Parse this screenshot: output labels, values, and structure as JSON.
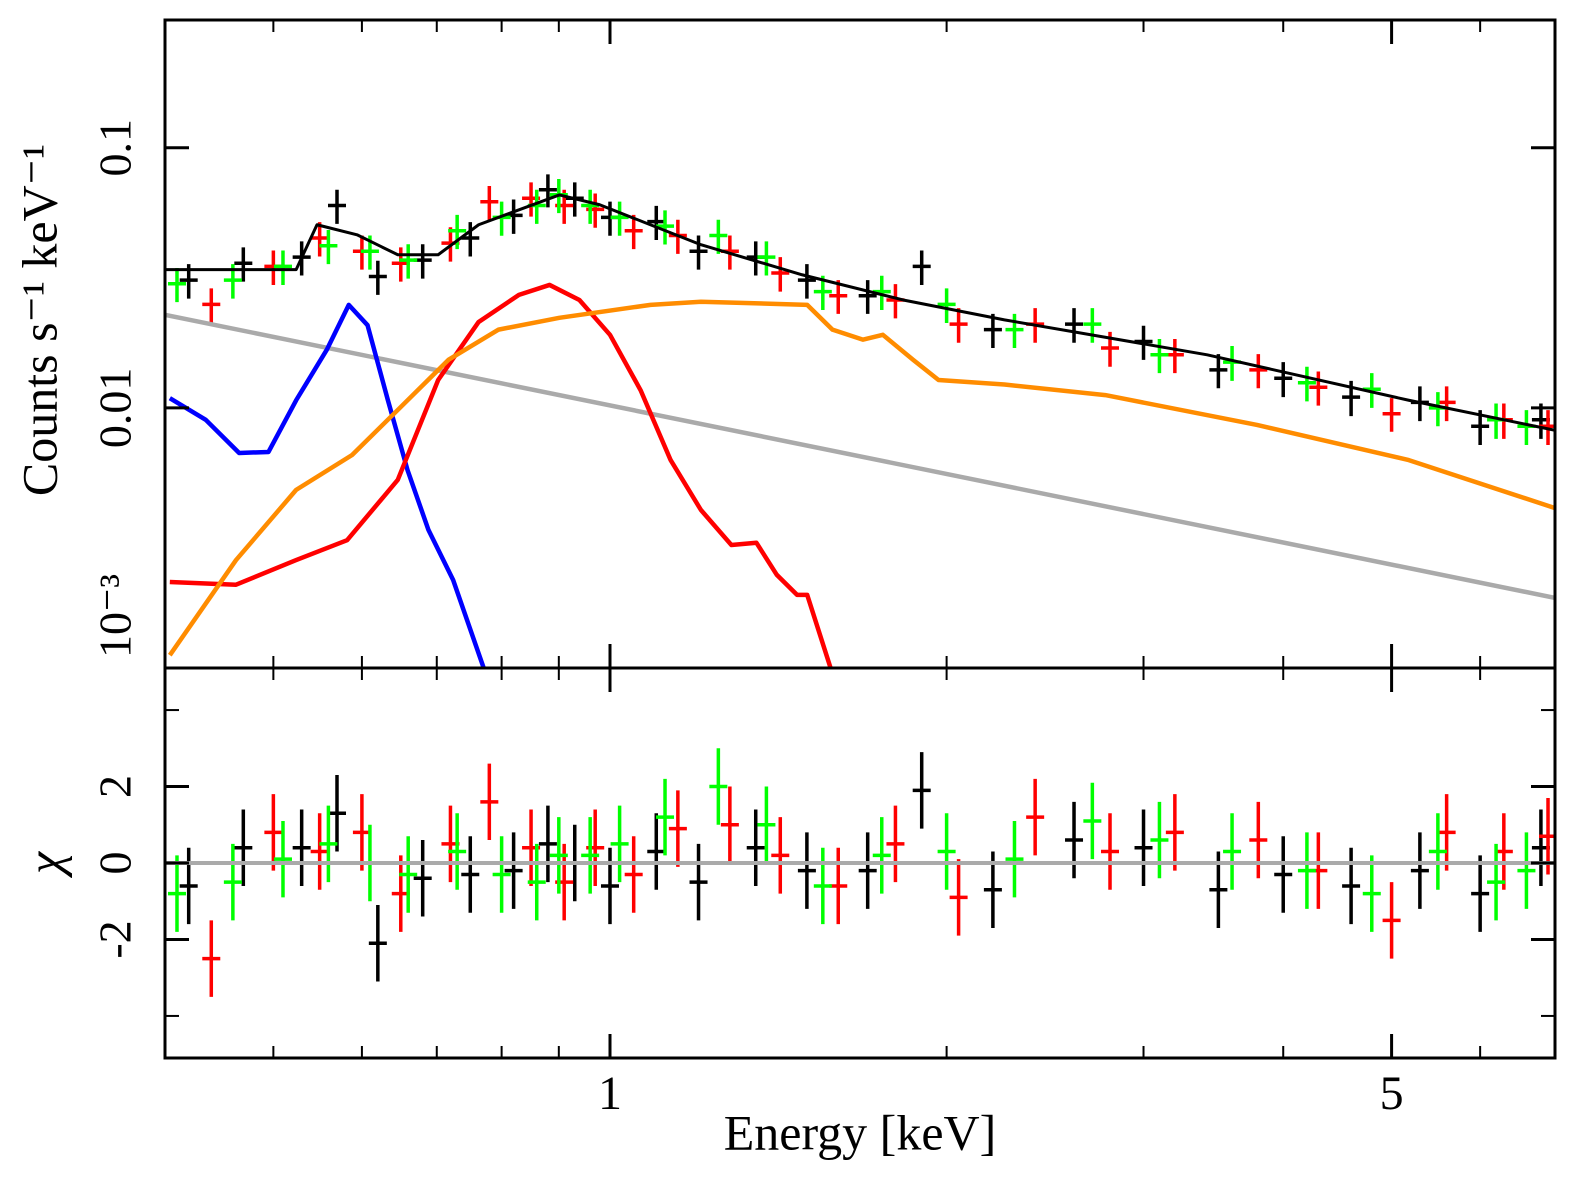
{
  "chart_data": {
    "type": "spectrum",
    "ylabel": "Counts s⁻¹ keV⁻¹",
    "xlabel": "Energy [keV]",
    "xscale": "log",
    "yscale": "log",
    "xlim": [
      0.4,
      7
    ],
    "xticks": [
      1,
      5
    ],
    "xticks_minor": [
      0.5,
      0.6,
      0.7,
      0.8,
      0.9,
      2,
      3,
      4,
      6,
      7
    ],
    "ylim": [
      0.001,
      0.31
    ],
    "yticks": [
      0.1,
      0.01,
      {
        "value": 0.001,
        "label": "10⁻³"
      }
    ],
    "chi_ylabel": "χ",
    "chi_ylim": [
      -5.1,
      5.1
    ],
    "chi_yticks": [
      -2,
      0,
      2
    ],
    "chi_yticks_minor": [
      -4,
      4
    ],
    "models": [
      {
        "color": "#aaaaaa",
        "x": [
          0.4,
          7
        ],
        "values": [
          0.0228,
          0.00186
        ]
      },
      {
        "color": "#0000ff",
        "x": [
          0.404,
          0.435,
          0.466,
          0.495,
          0.524,
          0.558,
          0.584,
          0.607,
          0.633,
          0.659,
          0.688,
          0.724,
          0.771
        ],
        "values": [
          0.0109,
          0.009,
          0.00671,
          0.00677,
          0.0107,
          0.0167,
          0.0249,
          0.0208,
          0.0107,
          0.00578,
          0.0034,
          0.00218,
          0.001
        ]
      },
      {
        "color": "#ff0000",
        "x": [
          0.404,
          0.463,
          0.524,
          0.582,
          0.646,
          0.702,
          0.763,
          0.829,
          0.883,
          0.939,
          1,
          1.065,
          1.133,
          1.206,
          1.284,
          1.352,
          1.41,
          1.47,
          1.501,
          1.575
        ],
        "values": [
          0.00214,
          0.00209,
          0.0026,
          0.0031,
          0.00529,
          0.0128,
          0.0214,
          0.0272,
          0.0297,
          0.026,
          0.0191,
          0.0117,
          0.0063,
          0.00405,
          0.00297,
          0.00303,
          0.00228,
          0.00191,
          0.00191,
          0.001
        ]
      },
      {
        "color": "#ff8c00",
        "x": [
          0.404,
          0.463,
          0.524,
          0.588,
          0.646,
          0.717,
          0.795,
          0.901,
          1.087,
          1.206,
          1.501,
          1.581,
          1.683,
          1.754,
          1.867,
          1.967,
          2.253,
          2.773,
          3.79,
          5.18,
          7
        ],
        "values": [
          0.00112,
          0.0026,
          0.00484,
          0.00659,
          0.00982,
          0.0153,
          0.02,
          0.0222,
          0.0249,
          0.0256,
          0.0249,
          0.02,
          0.0183,
          0.0191,
          0.0153,
          0.0128,
          0.0123,
          0.0112,
          0.0086,
          0.0063,
          0.00412
        ]
      },
      {
        "color": "#000000",
        "x": [
          0.4,
          0.524,
          0.547,
          0.594,
          0.646,
          0.702,
          0.763,
          0.901,
          0.979,
          1.206,
          1.485,
          1.829,
          2.253,
          3.42,
          5.18,
          7
        ],
        "values": [
          0.034,
          0.034,
          0.0506,
          0.0463,
          0.0388,
          0.0388,
          0.0506,
          0.0659,
          0.0604,
          0.0424,
          0.0325,
          0.026,
          0.0218,
          0.016,
          0.0107,
          0.0082
        ]
      }
    ],
    "series": [
      {
        "color": "#000000",
        "x": [
          0.42,
          0.47,
          0.53,
          0.57,
          0.62,
          0.68,
          0.75,
          0.82,
          0.88,
          0.93,
          1.0,
          1.1,
          1.2,
          1.35,
          1.5,
          1.7,
          1.9,
          2.2,
          2.6,
          3.0,
          3.5,
          4.0,
          4.6,
          5.3,
          6.0,
          6.8
        ],
        "values": [
          0.031,
          0.036,
          0.038,
          0.06,
          0.032,
          0.037,
          0.045,
          0.055,
          0.069,
          0.064,
          0.054,
          0.052,
          0.04,
          0.038,
          0.031,
          0.027,
          0.035,
          0.02,
          0.021,
          0.018,
          0.014,
          0.013,
          0.011,
          0.0105,
          0.0085,
          0.009
        ],
        "errors": [
          0.0047,
          0.0054,
          0.0057,
          0.009,
          0.0048,
          0.0056,
          0.0068,
          0.0083,
          0.01,
          0.0096,
          0.0081,
          0.0078,
          0.006,
          0.0057,
          0.0047,
          0.004,
          0.0053,
          0.003,
          0.0032,
          0.0027,
          0.0021,
          0.002,
          0.0017,
          0.0016,
          0.0013,
          0.0014
        ],
        "residuals": [
          -0.6,
          0.4,
          0.4,
          1.3,
          -2.1,
          -0.4,
          -0.3,
          -0.2,
          0.5,
          0,
          -0.6,
          0.3,
          -0.5,
          0.4,
          -0.2,
          -0.2,
          1.9,
          -0.7,
          0.6,
          0.4,
          -0.7,
          -0.3,
          -0.6,
          -0.2,
          -0.8,
          0.4
        ]
      },
      {
        "color": "#ff0000",
        "x": [
          0.44,
          0.5,
          0.55,
          0.6,
          0.65,
          0.72,
          0.78,
          0.85,
          0.91,
          0.97,
          1.05,
          1.15,
          1.28,
          1.42,
          1.6,
          1.8,
          2.05,
          2.4,
          2.8,
          3.2,
          3.8,
          4.3,
          5.0,
          5.6,
          6.3,
          6.9
        ],
        "values": [
          0.025,
          0.035,
          0.045,
          0.04,
          0.036,
          0.043,
          0.062,
          0.064,
          0.06,
          0.058,
          0.048,
          0.046,
          0.04,
          0.033,
          0.027,
          0.026,
          0.021,
          0.021,
          0.017,
          0.016,
          0.014,
          0.012,
          0.0095,
          0.0105,
          0.009,
          0.0085
        ],
        "errors": [
          0.0038,
          0.0053,
          0.0068,
          0.006,
          0.0054,
          0.0065,
          0.0093,
          0.0096,
          0.009,
          0.0087,
          0.0072,
          0.0069,
          0.006,
          0.005,
          0.004,
          0.0039,
          0.0032,
          0.0032,
          0.0026,
          0.0024,
          0.0021,
          0.0018,
          0.0014,
          0.0016,
          0.0014,
          0.0013
        ],
        "residuals": [
          -2.5,
          0.8,
          0.3,
          0.8,
          -0.8,
          0.5,
          1.6,
          0.4,
          -0.5,
          0.4,
          -0.3,
          0.9,
          1.0,
          0.2,
          -0.6,
          0.5,
          -0.9,
          1.2,
          0.3,
          0.8,
          0.6,
          -0.2,
          -1.5,
          0.8,
          0.3,
          0.7
        ]
      },
      {
        "color": "#00ff00",
        "x": [
          0.41,
          0.46,
          0.51,
          0.56,
          0.61,
          0.66,
          0.73,
          0.8,
          0.86,
          0.9,
          0.96,
          1.02,
          1.12,
          1.25,
          1.38,
          1.55,
          1.75,
          2.0,
          2.3,
          2.7,
          3.1,
          3.6,
          4.2,
          4.8,
          5.5,
          6.2,
          6.6
        ],
        "values": [
          0.03,
          0.031,
          0.035,
          0.042,
          0.04,
          0.037,
          0.048,
          0.054,
          0.06,
          0.066,
          0.06,
          0.054,
          0.05,
          0.046,
          0.038,
          0.028,
          0.028,
          0.025,
          0.02,
          0.021,
          0.016,
          0.015,
          0.0125,
          0.0118,
          0.01,
          0.009,
          0.0085
        ],
        "errors": [
          0.0045,
          0.0047,
          0.0053,
          0.0063,
          0.006,
          0.0056,
          0.0072,
          0.0081,
          0.009,
          0.0099,
          0.009,
          0.0081,
          0.0075,
          0.0069,
          0.0057,
          0.0042,
          0.0042,
          0.0038,
          0.003,
          0.0032,
          0.0024,
          0.0023,
          0.0019,
          0.0018,
          0.0015,
          0.0014,
          0.0013
        ],
        "residuals": [
          -0.8,
          -0.5,
          0.1,
          0.5,
          0,
          -0.3,
          0.3,
          -0.3,
          -0.5,
          0.2,
          0.2,
          0.5,
          1.2,
          2.0,
          1.0,
          -0.6,
          0.2,
          0.3,
          0.1,
          1.1,
          0.6,
          0.3,
          -0.2,
          -0.8,
          0.3,
          -0.5,
          -0.2
        ]
      }
    ]
  }
}
